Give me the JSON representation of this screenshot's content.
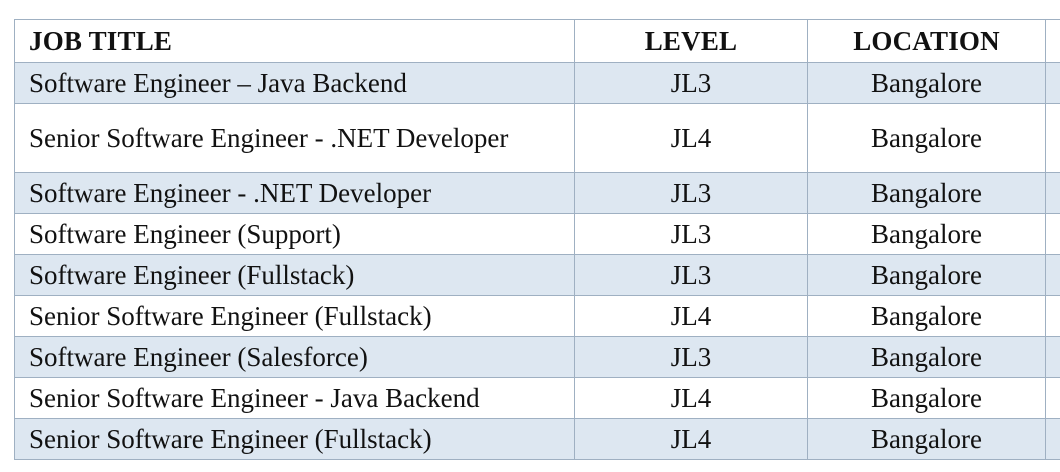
{
  "table": {
    "headers": [
      "JOB TITLE",
      "LEVEL",
      "LOCATION"
    ],
    "rows": [
      {
        "title": "Software Engineer – Java Backend",
        "level": "JL3",
        "location": "Bangalore"
      },
      {
        "title": "Senior Software Engineer - .NET Developer",
        "level": "JL4",
        "location": "Bangalore"
      },
      {
        "title": "Software Engineer - .NET Developer",
        "level": "JL3",
        "location": "Bangalore"
      },
      {
        "title": "Software Engineer (Support)",
        "level": "JL3",
        "location": "Bangalore"
      },
      {
        "title": "Software Engineer (Fullstack)",
        "level": "JL3",
        "location": "Bangalore"
      },
      {
        "title": "Senior Software Engineer (Fullstack)",
        "level": "JL4",
        "location": "Bangalore"
      },
      {
        "title": "Software Engineer (Salesforce)",
        "level": "JL3",
        "location": "Bangalore"
      },
      {
        "title": "Senior Software Engineer - Java Backend",
        "level": "JL4",
        "location": "Bangalore"
      },
      {
        "title": "Senior Software Engineer (Fullstack)",
        "level": "JL4",
        "location": "Bangalore"
      }
    ]
  },
  "colors": {
    "shaded_row": "#dde7f1",
    "border": "#9fb0c2",
    "text": "#111111"
  }
}
